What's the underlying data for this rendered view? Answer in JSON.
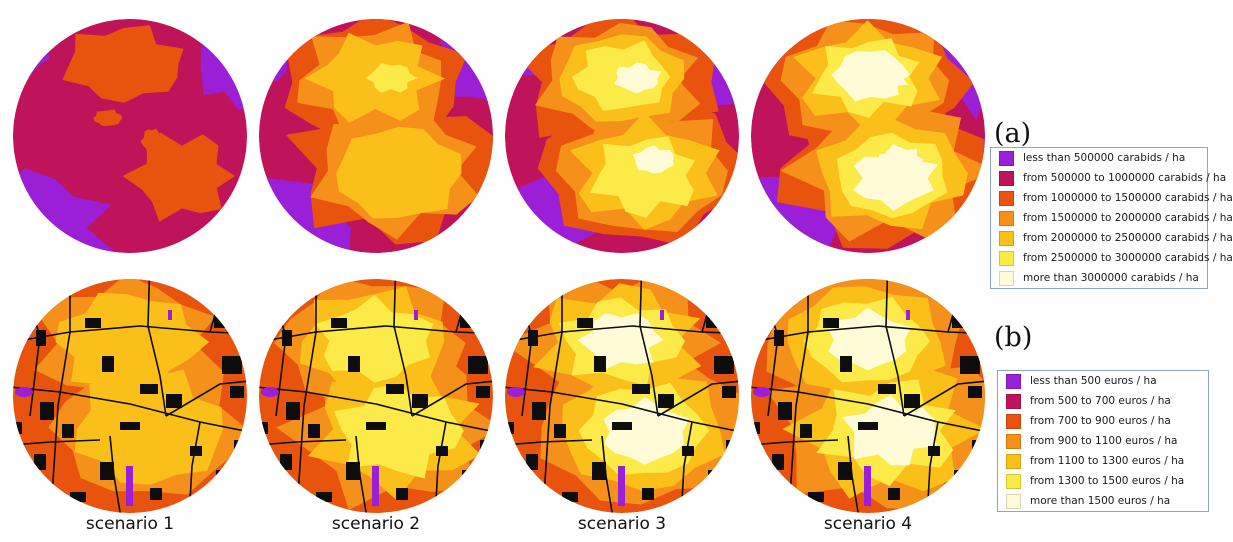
{
  "panels": {
    "a_label": "(a)",
    "b_label": "(b)"
  },
  "scenarios": [
    {
      "label": "scenario 1",
      "level": 1
    },
    {
      "label": "scenario 2",
      "level": 2
    },
    {
      "label": "scenario 3",
      "level": 3
    },
    {
      "label": "scenario 4",
      "level": 4
    }
  ],
  "legend_a": [
    {
      "label": "less than 500000 carabids / ha",
      "color": "#9b1fd6"
    },
    {
      "label": "from 500000 to 1000000 carabids / ha",
      "color": "#c0145a"
    },
    {
      "label": "from 1000000 to 1500000 carabids / ha",
      "color": "#e8540e"
    },
    {
      "label": "from 1500000 to 2000000 carabids / ha",
      "color": "#f5901a"
    },
    {
      "label": "from 2000000 to 2500000 carabids / ha",
      "color": "#fbbf1a"
    },
    {
      "label": "from 2500000 to 3000000 carabids / ha",
      "color": "#fbea47"
    },
    {
      "label": "more than 3000000 carabids / ha",
      "color": "#fffbd6"
    }
  ],
  "legend_b": [
    {
      "label": "less than 500 euros / ha",
      "color": "#9b1fd6"
    },
    {
      "label": "from 500 to 700 euros / ha",
      "color": "#c0145a"
    },
    {
      "label": "from 700 to 900 euros / ha",
      "color": "#e8540e"
    },
    {
      "label": "from 900 to 1100 euros / ha",
      "color": "#f5901a"
    },
    {
      "label": "from 1100 to 1300 euros / ha",
      "color": "#fbbf1a"
    },
    {
      "label": "from 1300 to 1500 euros / ha",
      "color": "#fbea47"
    },
    {
      "label": "more than 1500 euros / ha",
      "color": "#fffbd6"
    }
  ]
}
